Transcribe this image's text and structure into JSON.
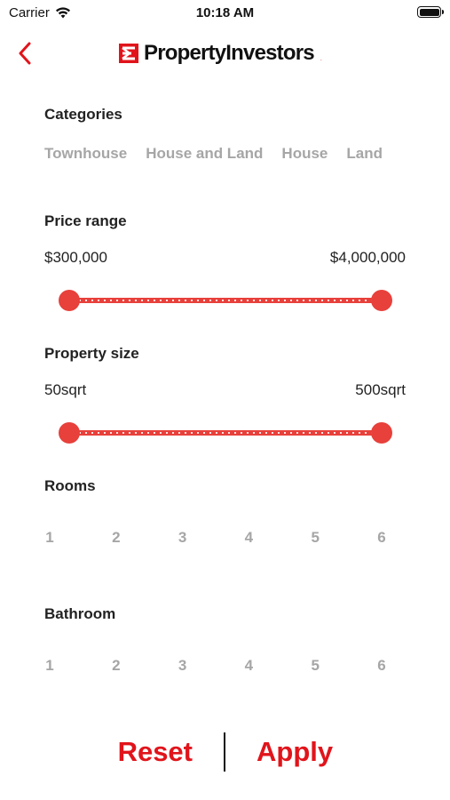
{
  "status_bar": {
    "carrier": "Carrier",
    "time": "10:18 AM",
    "icons": [
      "wifi-icon",
      "battery-icon"
    ]
  },
  "header": {
    "back_icon": "chevron-left-icon",
    "logo_text": "PropertyInvestors",
    "logo_trademark": ".",
    "accent_color": "#e1141b"
  },
  "categories": {
    "label": "Categories",
    "items": [
      "Townhouse",
      "House and Land",
      "House",
      "Land"
    ]
  },
  "price_range": {
    "label": "Price range",
    "min_label": "$300,000",
    "max_label": "$4,000,000",
    "selected_min_fraction": 0.0,
    "selected_max_fraction": 1.0
  },
  "property_size": {
    "label": "Property size",
    "min_label": "50sqrt",
    "max_label": "500sqrt",
    "selected_min_fraction": 0.0,
    "selected_max_fraction": 1.0
  },
  "rooms": {
    "label": "Rooms",
    "options": [
      "1",
      "2",
      "3",
      "4",
      "5",
      "6"
    ]
  },
  "bathroom": {
    "label": "Bathroom",
    "options": [
      "1",
      "2",
      "3",
      "4",
      "5",
      "6"
    ]
  },
  "footer": {
    "reset_label": "Reset",
    "apply_label": "Apply"
  },
  "colors": {
    "accent": "#e1141b",
    "slider": "#e8403b",
    "inactive_text": "#a6a6a6"
  }
}
